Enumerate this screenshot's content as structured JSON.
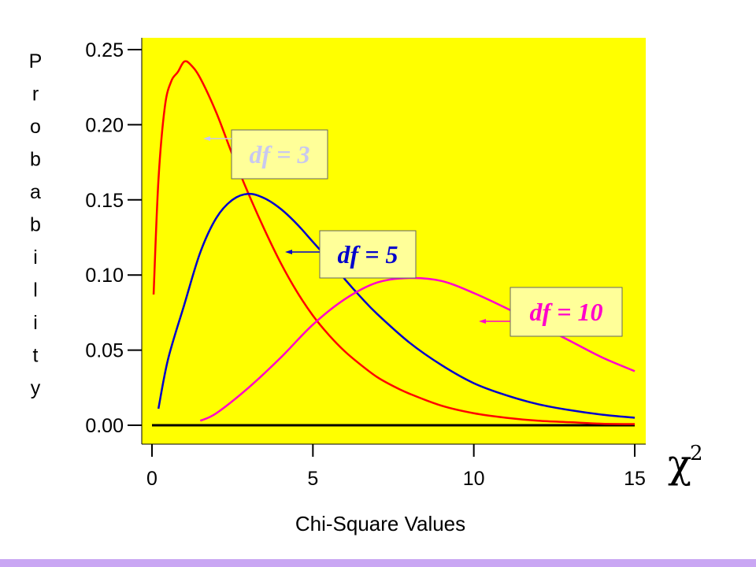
{
  "chart_data": {
    "type": "line",
    "title": "",
    "xlabel": "Chi-Square Values",
    "ylabel": "Probability",
    "xlim": [
      0,
      15
    ],
    "ylim": [
      0,
      0.25
    ],
    "x_ticks": [
      "0",
      "5",
      "10",
      "15"
    ],
    "y_ticks": [
      "0.00",
      "0.05",
      "0.10",
      "0.15",
      "0.20",
      "0.25"
    ],
    "plot_background": "#ffff00",
    "grid": false,
    "series": [
      {
        "name": "df = 3",
        "color": "#ff0000",
        "x": [
          0.05,
          0.2,
          0.4,
          0.6,
          0.8,
          1.0,
          1.2,
          1.5,
          2.0,
          2.5,
          3.0,
          3.5,
          4.0,
          4.5,
          5.0,
          5.5,
          6.0,
          6.5,
          7.0,
          7.5,
          8.0,
          9.0,
          10.0,
          11.0,
          12.0,
          13.0,
          14.0,
          15.0
        ],
        "y": [
          0.087,
          0.163,
          0.212,
          0.229,
          0.235,
          0.242,
          0.24,
          0.231,
          0.208,
          0.18,
          0.154,
          0.13,
          0.108,
          0.089,
          0.073,
          0.06,
          0.049,
          0.04,
          0.032,
          0.026,
          0.021,
          0.013,
          0.008,
          0.005,
          0.003,
          0.002,
          0.001,
          0.0008
        ]
      },
      {
        "name": "df = 5",
        "color": "#0000cc",
        "x": [
          0.2,
          0.5,
          1.0,
          1.5,
          2.0,
          2.5,
          3.0,
          3.5,
          4.0,
          4.5,
          5.0,
          5.5,
          6.0,
          6.5,
          7.0,
          8.0,
          9.0,
          10.0,
          11.0,
          12.0,
          13.0,
          14.0,
          15.0
        ],
        "y": [
          0.011,
          0.044,
          0.08,
          0.115,
          0.138,
          0.15,
          0.154,
          0.151,
          0.144,
          0.134,
          0.122,
          0.11,
          0.097,
          0.085,
          0.074,
          0.055,
          0.04,
          0.028,
          0.02,
          0.014,
          0.01,
          0.007,
          0.005
        ]
      },
      {
        "name": "df = 10",
        "color": "#ff00cc",
        "x": [
          1.5,
          2.0,
          3.0,
          4.0,
          5.0,
          6.0,
          7.0,
          8.0,
          9.0,
          10.0,
          11.0,
          12.0,
          13.0,
          14.0,
          15.0
        ],
        "y": [
          0.003,
          0.008,
          0.025,
          0.045,
          0.067,
          0.084,
          0.095,
          0.098,
          0.096,
          0.088,
          0.078,
          0.067,
          0.056,
          0.045,
          0.036
        ]
      }
    ],
    "legend": [
      {
        "label": "df = 3",
        "color": "#c8c8f0",
        "background": "#ffff99",
        "arrow_color": "#c8c8f0"
      },
      {
        "label": "df = 5",
        "color": "#0000cc",
        "background": "#ffff99",
        "arrow_color": "#0000cc"
      },
      {
        "label": "df = 10",
        "color": "#ff00cc",
        "background": "#ffff99",
        "arrow_color": "#ff00cc"
      }
    ],
    "axis_symbol": "χ",
    "axis_symbol_sup": "2"
  }
}
